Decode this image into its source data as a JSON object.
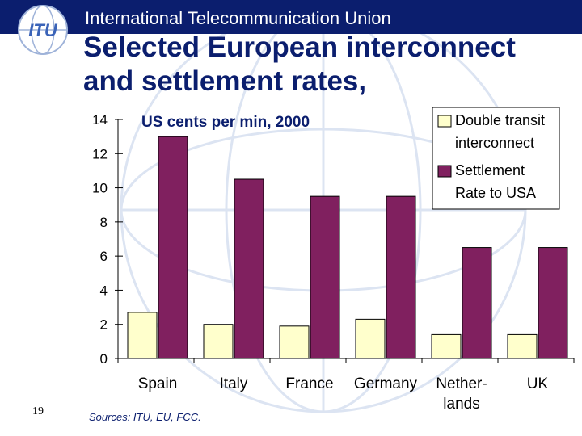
{
  "header": {
    "org_name": "International Telecommunication Union",
    "logo_text": "ITU",
    "title_line1": "Selected European interconnect",
    "title_line2": "and settlement rates,"
  },
  "footer": {
    "slide_number": "19",
    "sources": "Sources: ITU, EU, FCC."
  },
  "colors": {
    "header_bar": "#0b1e6e",
    "interconnect": "#ffffcc",
    "settlement": "#80205f"
  },
  "chart_data": {
    "type": "bar",
    "title": "US cents per min, 2000",
    "categories": [
      "Spain",
      "Italy",
      "France",
      "Germany",
      "Nether-|lands",
      "UK"
    ],
    "series": [
      {
        "name": "Double transit|interconnect",
        "values": [
          2.7,
          2.0,
          1.9,
          2.3,
          1.4,
          1.4
        ]
      },
      {
        "name": "Settlement|Rate to USA",
        "values": [
          13.0,
          10.5,
          9.5,
          9.5,
          6.5,
          6.5
        ]
      }
    ],
    "ylim": [
      0,
      14
    ],
    "yticks": [
      0,
      2,
      4,
      6,
      8,
      10,
      12,
      14
    ],
    "legend": "top-right",
    "grid": false
  }
}
